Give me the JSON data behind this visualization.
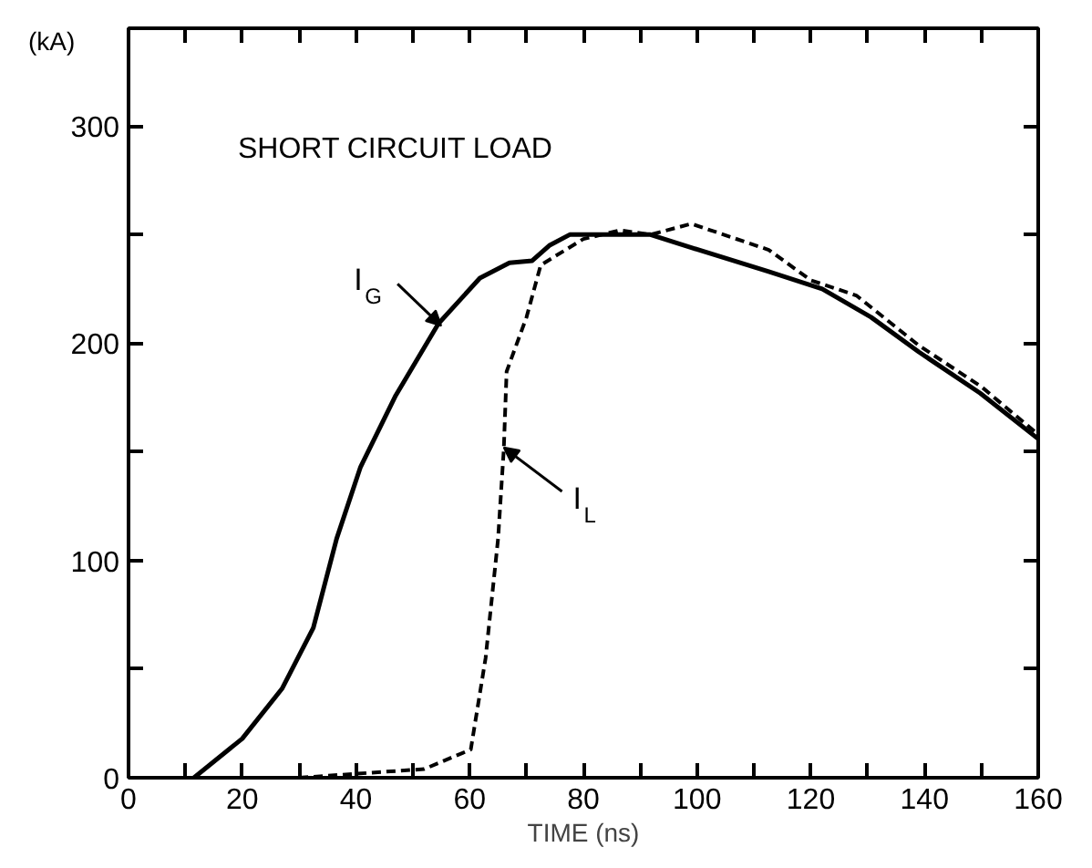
{
  "chart_data": {
    "type": "line",
    "xlabel": "TIME (ns)",
    "ylabel": "(kA)",
    "xlim": [
      0,
      160
    ],
    "ylim": [
      0,
      345
    ],
    "xticks": [
      0,
      {
        "value": 10,
        "label": null
      },
      20,
      {
        "value": 30,
        "label": null
      },
      40,
      {
        "value": 50,
        "label": null
      },
      60,
      {
        "value": 70,
        "label": null
      },
      80,
      {
        "value": 90,
        "label": null
      },
      100,
      {
        "value": 110,
        "label": null
      },
      120,
      {
        "value": 130,
        "label": null
      },
      140,
      {
        "value": 150,
        "label": null
      },
      160
    ],
    "yticks": [
      0,
      {
        "value": 50,
        "label": null
      },
      100,
      {
        "value": 150,
        "label": null
      },
      200,
      {
        "value": 250,
        "label": null
      },
      300
    ],
    "grid": false,
    "marker": "none",
    "series": [
      {
        "color": "#000000",
        "line_style": "solid",
        "x": [
          11.5,
          20,
          27,
          32.5,
          36.6,
          40.8,
          47,
          54.5,
          61.8,
          67,
          71,
          74,
          77.6,
          91.8,
          99,
          112.6,
          122,
          130.6,
          139,
          149.8,
          160
        ],
        "values": [
          0,
          18,
          41,
          69,
          110,
          143,
          176,
          209,
          230,
          237,
          238,
          245,
          250,
          250,
          244,
          233,
          225,
          212,
          196,
          177,
          156
        ]
      },
      {
        "color": "#000000",
        "line_style": "dashed",
        "x": [
          30,
          52,
          60.2,
          62.8,
          65,
          66,
          66.5,
          70,
          72.5,
          80,
          86.4,
          91.8,
          99,
          112.6,
          120,
          128,
          139,
          150,
          160
        ],
        "values": [
          0,
          4,
          13,
          55,
          110,
          151,
          187,
          212,
          236,
          248,
          252,
          250,
          255,
          243,
          229,
          222,
          199,
          180,
          158
        ]
      }
    ],
    "annotations": [
      "SHORT CIRCUIT LOAD",
      {
        "text": "I$_{G}$",
        "x": 55,
        "y": 208
      },
      {
        "text": "I$_{L}$",
        "x": 66,
        "y": 152
      }
    ]
  }
}
